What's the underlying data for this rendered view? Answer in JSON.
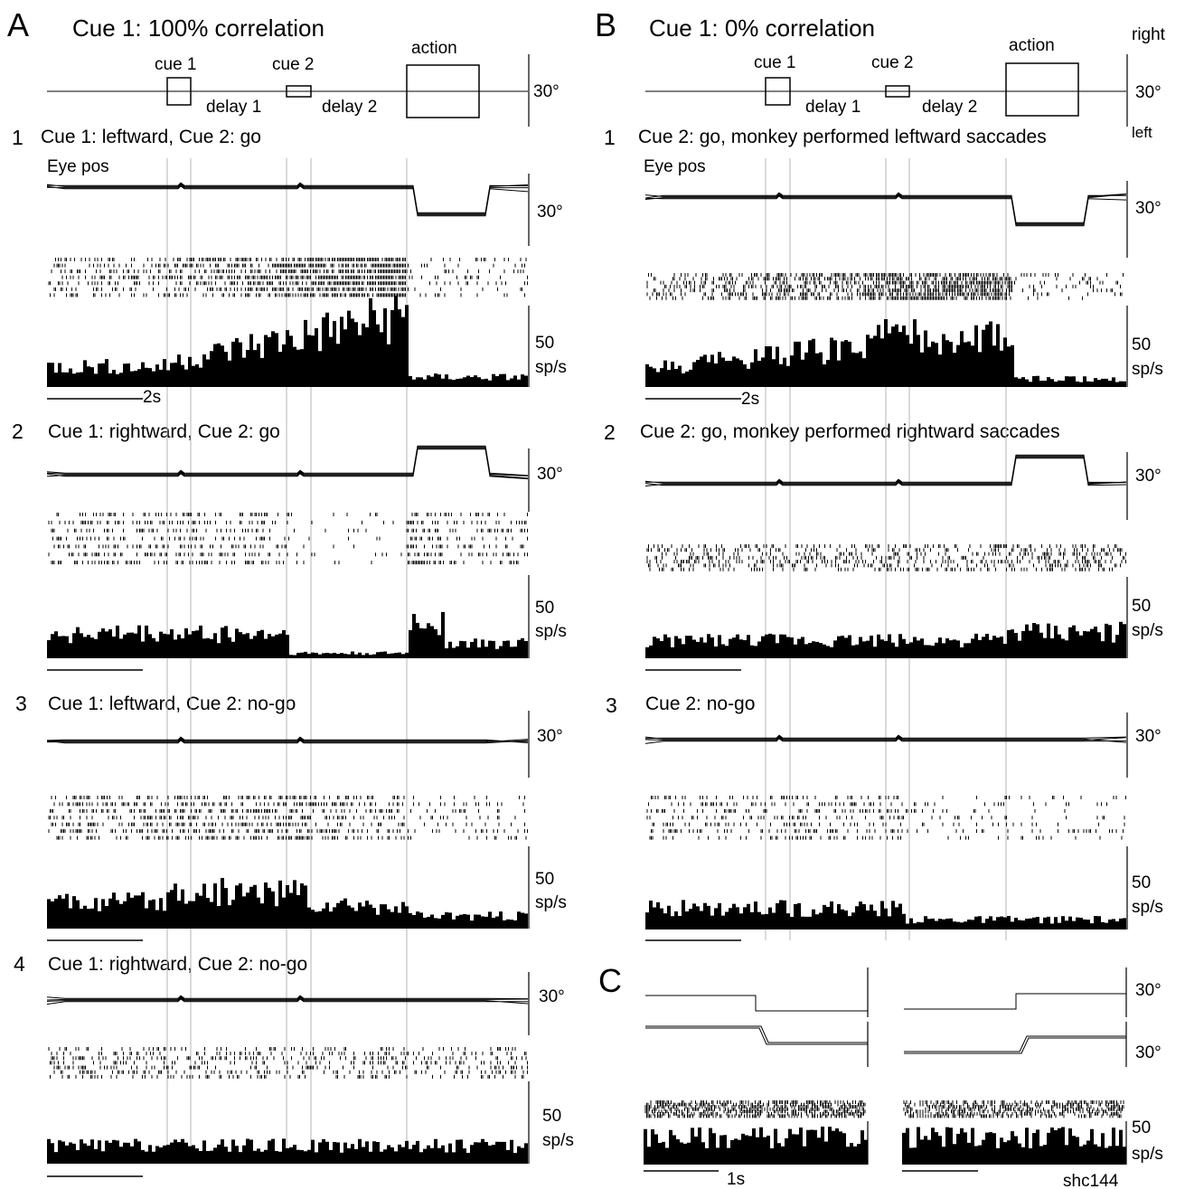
{
  "panelA": {
    "letter": "A",
    "title": "Cue 1: 100% correlation",
    "timeline": {
      "cue1": "cue 1",
      "cue2": "cue 2",
      "delay1": "delay 1",
      "delay2": "delay 2",
      "action": "action",
      "scale": "30°"
    },
    "eye_label": "Eye pos",
    "time_scale": "2s",
    "rows": [
      {
        "num": "1",
        "label": "Cue 1: leftward,  Cue 2: go",
        "eye_scale": "30°",
        "rate_scale_1": "50",
        "rate_scale_2": "sp/s"
      },
      {
        "num": "2",
        "label": "Cue 1: rightward,  Cue 2: go",
        "eye_scale": "30°",
        "rate_scale_1": "50",
        "rate_scale_2": "sp/s"
      },
      {
        "num": "3",
        "label": "Cue 1: leftward,  Cue 2: no-go",
        "eye_scale": "30°",
        "rate_scale_1": "50",
        "rate_scale_2": "sp/s"
      },
      {
        "num": "4",
        "label": "Cue 1: rightward,  Cue 2: no-go",
        "eye_scale": "30°",
        "rate_scale_1": "50",
        "rate_scale_2": "sp/s"
      }
    ]
  },
  "panelB": {
    "letter": "B",
    "title": "Cue 1: 0% correlation",
    "timeline": {
      "cue1": "cue 1",
      "cue2": "cue 2",
      "delay1": "delay 1",
      "delay2": "delay 2",
      "action": "action",
      "right": "right",
      "scale": "30°",
      "left": "left"
    },
    "eye_label": "Eye pos",
    "time_scale": "2s",
    "rows": [
      {
        "num": "1",
        "label": "Cue 2: go, monkey performed leftward saccades",
        "eye_scale": "30°",
        "rate_scale_1": "50",
        "rate_scale_2": "sp/s"
      },
      {
        "num": "2",
        "label": "Cue 2: go, monkey performed rightward saccades",
        "eye_scale": "30°",
        "rate_scale_1": "50",
        "rate_scale_2": "sp/s"
      },
      {
        "num": "3",
        "label": "Cue 2: no-go",
        "eye_scale": "30°",
        "rate_scale_1": "50",
        "rate_scale_2": "sp/s"
      }
    ]
  },
  "panelC": {
    "letter": "C",
    "eye_scale_top": "30°",
    "eye_scale_bottom": "30°",
    "rate_scale_1": "50",
    "rate_scale_2": "sp/s",
    "time_scale": "1s",
    "cell_id": "shc144"
  }
}
